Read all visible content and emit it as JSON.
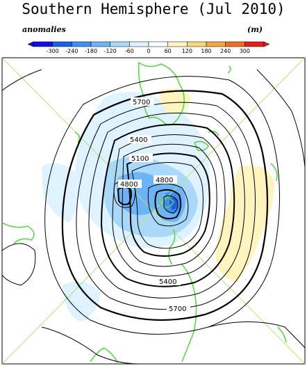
{
  "title": "Southern Hemisphere (Jul 2010)",
  "colorbar": {
    "left_label": "anomalies",
    "right_label": "(m)",
    "ticks": [
      "-300",
      "-240",
      "-180",
      "-120",
      "-60",
      "0",
      "60",
      "120",
      "180",
      "240",
      "300"
    ],
    "colors": [
      "#1010e0",
      "#1f5fe6",
      "#3f8ff0",
      "#6fb3f7",
      "#a9d8fb",
      "#dff2ff",
      "#ffffff",
      "#fff3c0",
      "#f7d878",
      "#f4a541",
      "#ef6b26",
      "#e4201c"
    ]
  },
  "map": {
    "contour_labels": [
      "5700",
      "5400",
      "5100",
      "4800",
      "4800",
      "5400",
      "5700"
    ]
  }
}
